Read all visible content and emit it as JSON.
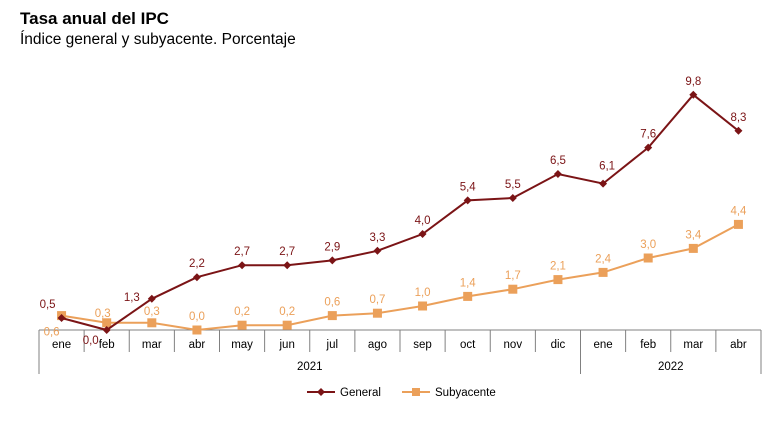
{
  "header": {
    "title": "Tasa anual del IPC",
    "subtitle": "Índice general y subyacente. Porcentaje"
  },
  "chart_data": {
    "type": "line",
    "title": "Tasa anual del IPC",
    "subtitle": "Índice general y subyacente. Porcentaje",
    "categories": [
      "ene",
      "feb",
      "mar",
      "abr",
      "may",
      "jun",
      "jul",
      "ago",
      "sep",
      "oct",
      "nov",
      "dic",
      "ene",
      "feb",
      "mar",
      "abr"
    ],
    "years": [
      {
        "label": "2021",
        "start": 0,
        "end": 11
      },
      {
        "label": "2022",
        "start": 12,
        "end": 15
      }
    ],
    "series": [
      {
        "name": "General",
        "color": "#7b1416",
        "marker": "diamond",
        "values": [
          0.5,
          0.0,
          1.3,
          2.2,
          2.7,
          2.7,
          2.9,
          3.3,
          4.0,
          5.4,
          5.5,
          6.5,
          6.1,
          7.6,
          9.8,
          8.3
        ],
        "labels": [
          "0,5",
          "0,0",
          "1,3",
          "2,2",
          "2,7",
          "2,7",
          "2,9",
          "3,3",
          "4,0",
          "5,4",
          "5,5",
          "6,5",
          "6,1",
          "7,6",
          "9,8",
          "8,3"
        ]
      },
      {
        "name": "Subyacente",
        "color": "#eba05a",
        "marker": "square",
        "values": [
          0.6,
          0.3,
          0.3,
          0.0,
          0.2,
          0.2,
          0.6,
          0.7,
          1.0,
          1.4,
          1.7,
          2.1,
          2.4,
          3.0,
          3.4,
          4.4
        ],
        "labels": [
          "0,6",
          "0,3",
          "0,3",
          "0,0",
          "0,2",
          "0,2",
          "0,6",
          "0,7",
          "1,0",
          "1,4",
          "1,7",
          "2,1",
          "2,4",
          "3,0",
          "3,4",
          "4,4"
        ]
      }
    ],
    "ylim": [
      0,
      10
    ],
    "grid": false,
    "legend": "bottom-center"
  }
}
